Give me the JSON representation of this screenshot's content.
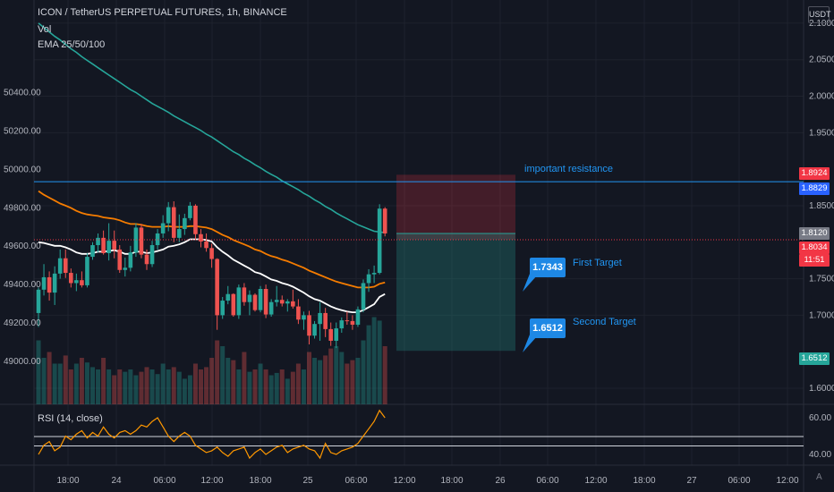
{
  "header": {
    "symbol_line": "ICON / TetherUS PERPETUAL FUTURES, 1h, BINANCE",
    "vol_label": "Vol",
    "ema_label": "EMA 25/50/100",
    "rsi_label": "RSI (14, close)",
    "currency_button": "USDT",
    "auto_label": "A"
  },
  "left_axis": {
    "ticks": [
      "50400.00",
      "50200.00",
      "50000.00",
      "49800.00",
      "49600.00",
      "49400.00",
      "49200.00",
      "49000.00"
    ],
    "tick_values": [
      50400,
      50200,
      50000,
      49800,
      49600,
      49400,
      49200,
      49000
    ]
  },
  "right_axis": {
    "ticks": [
      "2.1000",
      "2.0500",
      "2.0000",
      "1.9500",
      "1.8500",
      "1.7500",
      "1.7000",
      "1.6000"
    ],
    "tick_values": [
      2.1,
      2.05,
      2.0,
      1.95,
      1.85,
      1.75,
      1.7,
      1.6
    ],
    "rsi_ticks": [
      "60.00",
      "40.00"
    ]
  },
  "price_tags": [
    {
      "text": "1.8924",
      "value": 1.8924,
      "color": "#f23645",
      "lines": 1
    },
    {
      "text": "1.8829",
      "value": 1.8829,
      "color": "#2962ff",
      "lines": 1
    },
    {
      "text": "1.8120",
      "value": 1.812,
      "color": "#787b86",
      "lines": 1
    },
    {
      "text": "1.8034",
      "value": 1.8034,
      "color": "#f23645",
      "lines": 1
    },
    {
      "text": "11:51",
      "value": 1.7905,
      "color": "#f23645",
      "lines": 1
    },
    {
      "text": "1.6512",
      "value": 1.6512,
      "color": "#26a69a",
      "lines": 1
    }
  ],
  "time_axis": [
    "18:00",
    "24",
    "06:00",
    "12:00",
    "18:00",
    "25",
    "06:00",
    "12:00",
    "18:00",
    "26",
    "06:00",
    "12:00",
    "18:00",
    "27",
    "06:00",
    "12:00"
  ],
  "annotations": {
    "resistance": {
      "label": "important resistance",
      "value": 1.8829
    },
    "target1": {
      "callout": "1.7343",
      "label": "First Target",
      "value": 1.7343
    },
    "target2": {
      "callout": "1.6512",
      "label": "Second Target",
      "value": 1.6512
    }
  },
  "position": {
    "entry": 1.8034,
    "stop": 1.8924,
    "target": 1.6512,
    "current": 1.812
  },
  "colors": {
    "background": "#131722",
    "up": "#26a69a",
    "down": "#ef5350",
    "ema25": "#ffffff",
    "ema50": "#f57c00",
    "ema100": "#26a69a",
    "rsi": "#ff9800",
    "accent": "#2962ff"
  },
  "chart_data": {
    "type": "line",
    "title": "ICON / TetherUS PERPETUAL FUTURES, 1h, BINANCE",
    "candles": [
      {
        "o": 1.703,
        "h": 1.738,
        "l": 1.684,
        "c": 1.735
      },
      {
        "o": 1.735,
        "h": 1.77,
        "l": 1.727,
        "c": 1.752
      },
      {
        "o": 1.752,
        "h": 1.76,
        "l": 1.72,
        "c": 1.731
      },
      {
        "o": 1.731,
        "h": 1.767,
        "l": 1.714,
        "c": 1.757
      },
      {
        "o": 1.757,
        "h": 1.79,
        "l": 1.75,
        "c": 1.778
      },
      {
        "o": 1.778,
        "h": 1.79,
        "l": 1.751,
        "c": 1.758
      },
      {
        "o": 1.758,
        "h": 1.764,
        "l": 1.738,
        "c": 1.744
      },
      {
        "o": 1.744,
        "h": 1.757,
        "l": 1.733,
        "c": 1.748
      },
      {
        "o": 1.748,
        "h": 1.76,
        "l": 1.738,
        "c": 1.741
      },
      {
        "o": 1.741,
        "h": 1.785,
        "l": 1.738,
        "c": 1.78
      },
      {
        "o": 1.78,
        "h": 1.8,
        "l": 1.776,
        "c": 1.796
      },
      {
        "o": 1.796,
        "h": 1.812,
        "l": 1.786,
        "c": 1.806
      },
      {
        "o": 1.806,
        "h": 1.816,
        "l": 1.783,
        "c": 1.785
      },
      {
        "o": 1.785,
        "h": 1.826,
        "l": 1.775,
        "c": 1.802
      },
      {
        "o": 1.802,
        "h": 1.816,
        "l": 1.778,
        "c": 1.79
      },
      {
        "o": 1.79,
        "h": 1.796,
        "l": 1.758,
        "c": 1.762
      },
      {
        "o": 1.762,
        "h": 1.779,
        "l": 1.753,
        "c": 1.765
      },
      {
        "o": 1.765,
        "h": 1.795,
        "l": 1.76,
        "c": 1.786
      },
      {
        "o": 1.786,
        "h": 1.826,
        "l": 1.78,
        "c": 1.82
      },
      {
        "o": 1.82,
        "h": 1.825,
        "l": 1.778,
        "c": 1.783
      },
      {
        "o": 1.783,
        "h": 1.79,
        "l": 1.762,
        "c": 1.77
      },
      {
        "o": 1.77,
        "h": 1.802,
        "l": 1.766,
        "c": 1.796
      },
      {
        "o": 1.796,
        "h": 1.818,
        "l": 1.79,
        "c": 1.812
      },
      {
        "o": 1.812,
        "h": 1.837,
        "l": 1.806,
        "c": 1.826
      },
      {
        "o": 1.826,
        "h": 1.855,
        "l": 1.815,
        "c": 1.848
      },
      {
        "o": 1.848,
        "h": 1.856,
        "l": 1.8,
        "c": 1.806
      },
      {
        "o": 1.806,
        "h": 1.838,
        "l": 1.8,
        "c": 1.818
      },
      {
        "o": 1.818,
        "h": 1.839,
        "l": 1.81,
        "c": 1.833
      },
      {
        "o": 1.833,
        "h": 1.855,
        "l": 1.83,
        "c": 1.85
      },
      {
        "o": 1.85,
        "h": 1.852,
        "l": 1.804,
        "c": 1.811
      },
      {
        "o": 1.811,
        "h": 1.818,
        "l": 1.793,
        "c": 1.801
      },
      {
        "o": 1.801,
        "h": 1.812,
        "l": 1.787,
        "c": 1.792
      },
      {
        "o": 1.792,
        "h": 1.798,
        "l": 1.765,
        "c": 1.777
      },
      {
        "o": 1.777,
        "h": 1.778,
        "l": 1.68,
        "c": 1.7
      },
      {
        "o": 1.7,
        "h": 1.725,
        "l": 1.695,
        "c": 1.72
      },
      {
        "o": 1.72,
        "h": 1.74,
        "l": 1.715,
        "c": 1.729
      },
      {
        "o": 1.729,
        "h": 1.73,
        "l": 1.698,
        "c": 1.7
      },
      {
        "o": 1.7,
        "h": 1.742,
        "l": 1.695,
        "c": 1.738
      },
      {
        "o": 1.738,
        "h": 1.744,
        "l": 1.713,
        "c": 1.718
      },
      {
        "o": 1.718,
        "h": 1.734,
        "l": 1.7,
        "c": 1.728
      },
      {
        "o": 1.728,
        "h": 1.73,
        "l": 1.705,
        "c": 1.707
      },
      {
        "o": 1.707,
        "h": 1.74,
        "l": 1.704,
        "c": 1.736
      },
      {
        "o": 1.736,
        "h": 1.742,
        "l": 1.696,
        "c": 1.701
      },
      {
        "o": 1.701,
        "h": 1.722,
        "l": 1.698,
        "c": 1.718
      },
      {
        "o": 1.718,
        "h": 1.74,
        "l": 1.712,
        "c": 1.721
      },
      {
        "o": 1.721,
        "h": 1.727,
        "l": 1.712,
        "c": 1.716
      },
      {
        "o": 1.716,
        "h": 1.722,
        "l": 1.705,
        "c": 1.719
      },
      {
        "o": 1.719,
        "h": 1.735,
        "l": 1.709,
        "c": 1.712
      },
      {
        "o": 1.712,
        "h": 1.722,
        "l": 1.688,
        "c": 1.694
      },
      {
        "o": 1.694,
        "h": 1.705,
        "l": 1.68,
        "c": 1.7
      },
      {
        "o": 1.7,
        "h": 1.706,
        "l": 1.66,
        "c": 1.672
      },
      {
        "o": 1.672,
        "h": 1.692,
        "l": 1.668,
        "c": 1.688
      },
      {
        "o": 1.688,
        "h": 1.718,
        "l": 1.665,
        "c": 1.703
      },
      {
        "o": 1.703,
        "h": 1.71,
        "l": 1.67,
        "c": 1.681
      },
      {
        "o": 1.681,
        "h": 1.69,
        "l": 1.658,
        "c": 1.665
      },
      {
        "o": 1.665,
        "h": 1.69,
        "l": 1.655,
        "c": 1.682
      },
      {
        "o": 1.682,
        "h": 1.697,
        "l": 1.676,
        "c": 1.693
      },
      {
        "o": 1.693,
        "h": 1.705,
        "l": 1.687,
        "c": 1.692
      },
      {
        "o": 1.692,
        "h": 1.7,
        "l": 1.68,
        "c": 1.687
      },
      {
        "o": 1.687,
        "h": 1.712,
        "l": 1.684,
        "c": 1.708
      },
      {
        "o": 1.708,
        "h": 1.749,
        "l": 1.704,
        "c": 1.744
      },
      {
        "o": 1.744,
        "h": 1.763,
        "l": 1.732,
        "c": 1.756
      },
      {
        "o": 1.756,
        "h": 1.768,
        "l": 1.744,
        "c": 1.758
      },
      {
        "o": 1.758,
        "h": 1.852,
        "l": 1.756,
        "c": 1.846
      },
      {
        "o": 1.846,
        "h": 1.848,
        "l": 1.808,
        "c": 1.812
      }
    ],
    "volume": [
      0.55,
      0.4,
      0.45,
      0.35,
      0.35,
      0.42,
      0.3,
      0.35,
      0.4,
      0.36,
      0.32,
      0.3,
      0.4,
      0.3,
      0.25,
      0.3,
      0.28,
      0.3,
      0.25,
      0.28,
      0.32,
      0.3,
      0.26,
      0.35,
      0.3,
      0.32,
      0.28,
      0.22,
      0.25,
      0.35,
      0.3,
      0.32,
      0.4,
      0.55,
      0.5,
      0.4,
      0.38,
      0.3,
      0.45,
      0.28,
      0.3,
      0.35,
      0.3,
      0.25,
      0.27,
      0.3,
      0.22,
      0.28,
      0.35,
      0.3,
      0.45,
      0.4,
      0.38,
      0.42,
      0.48,
      0.5,
      0.45,
      0.35,
      0.38,
      0.4,
      0.55,
      0.68,
      0.75,
      0.72,
      0.5
    ],
    "ema25": [
      1.8,
      1.799,
      1.797,
      1.795,
      1.795,
      1.793,
      1.79,
      1.786,
      1.784,
      1.784,
      1.785,
      1.787,
      1.787,
      1.788,
      1.789,
      1.787,
      1.784,
      1.784,
      1.787,
      1.787,
      1.785,
      1.786,
      1.788,
      1.79,
      1.794,
      1.795,
      1.797,
      1.8,
      1.804,
      1.804,
      1.804,
      1.803,
      1.801,
      1.793,
      1.787,
      1.782,
      1.776,
      1.772,
      1.768,
      1.764,
      1.759,
      1.757,
      1.753,
      1.749,
      1.747,
      1.744,
      1.742,
      1.739,
      1.735,
      1.731,
      1.726,
      1.722,
      1.72,
      1.716,
      1.712,
      1.709,
      1.707,
      1.705,
      1.704,
      1.704,
      1.707,
      1.711,
      1.715,
      1.725,
      1.729
    ],
    "ema50": [
      1.87,
      1.865,
      1.861,
      1.857,
      1.853,
      1.85,
      1.847,
      1.843,
      1.84,
      1.838,
      1.837,
      1.836,
      1.834,
      1.833,
      1.832,
      1.83,
      1.827,
      1.825,
      1.825,
      1.824,
      1.822,
      1.821,
      1.821,
      1.821,
      1.822,
      1.821,
      1.821,
      1.821,
      1.822,
      1.822,
      1.821,
      1.82,
      1.818,
      1.814,
      1.81,
      1.807,
      1.803,
      1.8,
      1.797,
      1.794,
      1.79,
      1.788,
      1.784,
      1.781,
      1.779,
      1.776,
      1.774,
      1.771,
      1.768,
      1.765,
      1.761,
      1.758,
      1.755,
      1.752,
      1.749,
      1.746,
      1.744,
      1.742,
      1.74,
      1.738,
      1.738,
      1.738,
      1.739,
      1.743,
      1.745
    ],
    "ema100": [
      2.1,
      2.094,
      2.088,
      2.082,
      2.077,
      2.071,
      2.065,
      2.06,
      2.054,
      2.049,
      2.044,
      2.039,
      2.034,
      2.029,
      2.024,
      2.019,
      2.014,
      2.009,
      2.005,
      2.0,
      1.995,
      1.99,
      1.986,
      1.982,
      1.978,
      1.973,
      1.969,
      1.965,
      1.961,
      1.957,
      1.953,
      1.948,
      1.944,
      1.939,
      1.934,
      1.929,
      1.924,
      1.92,
      1.915,
      1.911,
      1.906,
      1.902,
      1.897,
      1.893,
      1.889,
      1.884,
      1.88,
      1.876,
      1.872,
      1.867,
      1.863,
      1.858,
      1.854,
      1.849,
      1.845,
      1.84,
      1.836,
      1.832,
      1.828,
      1.824,
      1.821,
      1.818,
      1.815,
      1.814,
      1.813
    ],
    "rsi": [
      40,
      45,
      47,
      42,
      44,
      50,
      48,
      51,
      53,
      49,
      52,
      50,
      55,
      51,
      49,
      52,
      53,
      51,
      53,
      56,
      55,
      58,
      60,
      55,
      50,
      47,
      50,
      52,
      50,
      45,
      43,
      41,
      42,
      44,
      41,
      39,
      42,
      43,
      44,
      38,
      41,
      43,
      40,
      42,
      44,
      45,
      41,
      43,
      44,
      45,
      43,
      42,
      38,
      46,
      41,
      40,
      42,
      43,
      44,
      46,
      50,
      54,
      58,
      64,
      60
    ],
    "rsi_levels": {
      "upper": 70,
      "lower": 30
    },
    "ylim": [
      1.58,
      2.11
    ],
    "rsi_ylim": [
      33,
      74
    ]
  }
}
